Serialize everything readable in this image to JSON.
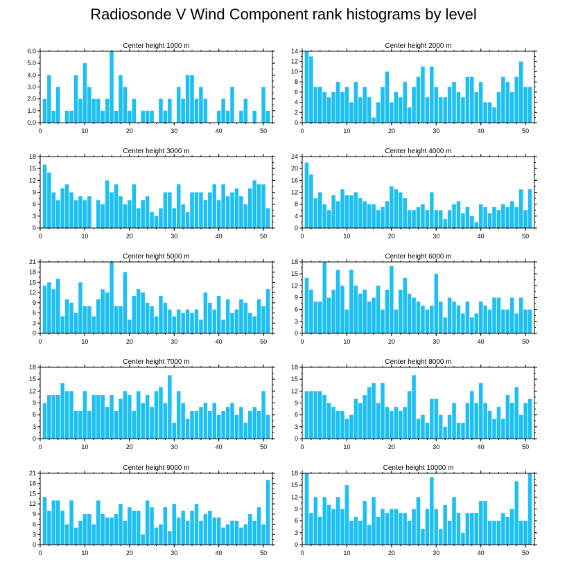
{
  "figure": {
    "title": "Radiosonde V Wind Component rank histograms by level"
  },
  "style": {
    "bar_color": "#1ec0f4",
    "axis_color": "#000000"
  },
  "chart_data": [
    {
      "type": "bar",
      "title": "Center height 1000 m",
      "x": [
        1,
        2,
        3,
        4,
        5,
        6,
        7,
        8,
        9,
        10,
        11,
        12,
        13,
        14,
        15,
        16,
        17,
        18,
        19,
        20,
        21,
        22,
        23,
        24,
        25,
        26,
        27,
        28,
        29,
        30,
        31,
        32,
        33,
        34,
        35,
        36,
        37,
        38,
        39,
        40,
        41,
        42,
        43,
        44,
        45,
        46,
        47,
        48,
        49,
        50,
        51
      ],
      "values": [
        2,
        4,
        1,
        3,
        0,
        1,
        1,
        4,
        2,
        5,
        3,
        2,
        2,
        1,
        2,
        6,
        1,
        4,
        3,
        1,
        2,
        0,
        1,
        1,
        1,
        0,
        2,
        1,
        2,
        0,
        3,
        2,
        4,
        4,
        2,
        3,
        2,
        0,
        0,
        1,
        2,
        1,
        3,
        0,
        1,
        2,
        0,
        1,
        0,
        3,
        1
      ],
      "xlim": [
        0,
        52
      ],
      "ylim": [
        0,
        6
      ],
      "yticks": [
        "0.0",
        "1.0",
        "2.0",
        "3.0",
        "4.0",
        "5.0",
        "6.0"
      ],
      "xticks": [
        "0",
        "10",
        "20",
        "30",
        "40",
        "50"
      ]
    },
    {
      "type": "bar",
      "title": "Center height 2000 m",
      "x": [
        1,
        2,
        3,
        4,
        5,
        6,
        7,
        8,
        9,
        10,
        11,
        12,
        13,
        14,
        15,
        16,
        17,
        18,
        19,
        20,
        21,
        22,
        23,
        24,
        25,
        26,
        27,
        28,
        29,
        30,
        31,
        32,
        33,
        34,
        35,
        36,
        37,
        38,
        39,
        40,
        41,
        42,
        43,
        44,
        45,
        46,
        47,
        48,
        49,
        50,
        51
      ],
      "values": [
        14,
        13,
        7,
        7,
        6,
        5,
        6,
        8,
        6,
        7,
        4,
        8,
        5,
        7,
        5,
        1,
        4,
        7,
        10,
        4,
        6,
        5,
        8,
        3,
        7,
        9,
        11,
        5,
        11,
        7,
        5,
        5,
        7,
        8,
        6,
        5,
        9,
        9,
        6,
        8,
        4,
        4,
        3,
        6,
        9,
        8,
        6,
        9,
        12,
        7,
        7
      ],
      "xlim": [
        0,
        52
      ],
      "ylim": [
        0,
        14
      ],
      "yticks": [
        "0",
        "2",
        "4",
        "6",
        "8",
        "10",
        "12",
        "14"
      ],
      "xticks": [
        "0",
        "10",
        "20",
        "30",
        "40",
        "50"
      ]
    },
    {
      "type": "bar",
      "title": "Center height 3000 m",
      "x": [
        1,
        2,
        3,
        4,
        5,
        6,
        7,
        8,
        9,
        10,
        11,
        12,
        13,
        14,
        15,
        16,
        17,
        18,
        19,
        20,
        21,
        22,
        23,
        24,
        25,
        26,
        27,
        28,
        29,
        30,
        31,
        32,
        33,
        34,
        35,
        36,
        37,
        38,
        39,
        40,
        41,
        42,
        43,
        44,
        45,
        46,
        47,
        48,
        49,
        50,
        51
      ],
      "values": [
        16,
        14,
        9,
        7,
        10,
        11,
        9,
        7,
        8,
        7,
        8,
        0,
        7,
        6,
        12,
        9,
        11,
        8,
        6,
        7,
        11,
        5,
        7,
        8,
        4,
        3,
        5,
        9,
        9,
        5,
        11,
        6,
        4,
        9,
        9,
        9,
        7,
        9,
        11,
        7,
        11,
        8,
        9,
        10,
        8,
        6,
        10,
        12,
        11,
        11,
        5
      ],
      "xlim": [
        0,
        52
      ],
      "ylim": [
        0,
        18
      ],
      "yticks": [
        "0",
        "3",
        "6",
        "9",
        "12",
        "15",
        "18"
      ],
      "xticks": [
        "0",
        "10",
        "20",
        "30",
        "40",
        "50"
      ]
    },
    {
      "type": "bar",
      "title": "Center height 4000 m",
      "x": [
        1,
        2,
        3,
        4,
        5,
        6,
        7,
        8,
        9,
        10,
        11,
        12,
        13,
        14,
        15,
        16,
        17,
        18,
        19,
        20,
        21,
        22,
        23,
        24,
        25,
        26,
        27,
        28,
        29,
        30,
        31,
        32,
        33,
        34,
        35,
        36,
        37,
        38,
        39,
        40,
        41,
        42,
        43,
        44,
        45,
        46,
        47,
        48,
        49,
        50,
        51
      ],
      "values": [
        22,
        18,
        10,
        12,
        8,
        6,
        11,
        9,
        13,
        11,
        11,
        12,
        10,
        9,
        8,
        8,
        6,
        7,
        9,
        14,
        13,
        12,
        10,
        6,
        6,
        7,
        8,
        6,
        12,
        6,
        6,
        3,
        6,
        8,
        9,
        5,
        7,
        4,
        2,
        8,
        7,
        5,
        7,
        6,
        8,
        7,
        9,
        7,
        13,
        6,
        13
      ],
      "xlim": [
        0,
        52
      ],
      "ylim": [
        0,
        24
      ],
      "yticks": [
        "0",
        "4",
        "8",
        "12",
        "16",
        "20",
        "24"
      ],
      "xticks": [
        "0",
        "10",
        "20",
        "30",
        "40",
        "50"
      ]
    },
    {
      "type": "bar",
      "title": "Center height 5000 m",
      "x": [
        1,
        2,
        3,
        4,
        5,
        6,
        7,
        8,
        9,
        10,
        11,
        12,
        13,
        14,
        15,
        16,
        17,
        18,
        19,
        20,
        21,
        22,
        23,
        24,
        25,
        26,
        27,
        28,
        29,
        30,
        31,
        32,
        33,
        34,
        35,
        36,
        37,
        38,
        39,
        40,
        41,
        42,
        43,
        44,
        45,
        46,
        47,
        48,
        49,
        50,
        51
      ],
      "values": [
        14,
        15,
        13,
        16,
        5,
        10,
        9,
        6,
        15,
        8,
        8,
        5,
        10,
        13,
        12,
        21,
        8,
        8,
        18,
        4,
        11,
        13,
        12,
        9,
        8,
        5,
        11,
        9,
        7,
        5,
        7,
        6,
        7,
        6,
        7,
        4,
        12,
        9,
        7,
        11,
        4,
        10,
        6,
        7,
        10,
        9,
        6,
        5,
        10,
        8,
        13
      ],
      "xlim": [
        0,
        52
      ],
      "ylim": [
        0,
        21
      ],
      "yticks": [
        "0",
        "3",
        "6",
        "9",
        "12",
        "15",
        "18",
        "21"
      ],
      "xticks": [
        "0",
        "10",
        "20",
        "30",
        "40",
        "50"
      ]
    },
    {
      "type": "bar",
      "title": "Center height 6000 m",
      "x": [
        1,
        2,
        3,
        4,
        5,
        6,
        7,
        8,
        9,
        10,
        11,
        12,
        13,
        14,
        15,
        16,
        17,
        18,
        19,
        20,
        21,
        22,
        23,
        24,
        25,
        26,
        27,
        28,
        29,
        30,
        31,
        32,
        33,
        34,
        35,
        36,
        37,
        38,
        39,
        40,
        41,
        42,
        43,
        44,
        45,
        46,
        47,
        48,
        49,
        50,
        51
      ],
      "values": [
        14,
        11,
        8,
        8,
        18,
        9,
        11,
        16,
        12,
        6,
        16,
        12,
        10,
        11,
        8,
        9,
        12,
        6,
        11,
        17,
        6,
        11,
        14,
        10,
        9,
        8,
        7,
        6,
        7,
        15,
        8,
        4,
        9,
        8,
        7,
        5,
        8,
        4,
        5,
        8,
        7,
        6,
        9,
        9,
        6,
        6,
        9,
        5,
        9,
        6,
        6
      ],
      "xlim": [
        0,
        52
      ],
      "ylim": [
        0,
        18
      ],
      "yticks": [
        "0",
        "3",
        "6",
        "9",
        "12",
        "15",
        "18"
      ],
      "xticks": [
        "0",
        "10",
        "20",
        "30",
        "40",
        "50"
      ]
    },
    {
      "type": "bar",
      "title": "Center height 7000 m",
      "x": [
        1,
        2,
        3,
        4,
        5,
        6,
        7,
        8,
        9,
        10,
        11,
        12,
        13,
        14,
        15,
        16,
        17,
        18,
        19,
        20,
        21,
        22,
        23,
        24,
        25,
        26,
        27,
        28,
        29,
        30,
        31,
        32,
        33,
        34,
        35,
        36,
        37,
        38,
        39,
        40,
        41,
        42,
        43,
        44,
        45,
        46,
        47,
        48,
        49,
        50,
        51
      ],
      "values": [
        9,
        11,
        11,
        11,
        14,
        12,
        12,
        7,
        7,
        12,
        7,
        11,
        11,
        11,
        8,
        11,
        7,
        10,
        12,
        11,
        7,
        12,
        9,
        11,
        8,
        12,
        13,
        9,
        16,
        4,
        12,
        9,
        5,
        7,
        7,
        8,
        9,
        7,
        9,
        6,
        7,
        8,
        9,
        6,
        8,
        4,
        7,
        8,
        7,
        12,
        6
      ],
      "xlim": [
        0,
        52
      ],
      "ylim": [
        0,
        18
      ],
      "yticks": [
        "0",
        "3",
        "6",
        "9",
        "12",
        "15",
        "18"
      ],
      "xticks": [
        "0",
        "10",
        "20",
        "30",
        "40",
        "50"
      ]
    },
    {
      "type": "bar",
      "title": "Center height 8000 m",
      "x": [
        1,
        2,
        3,
        4,
        5,
        6,
        7,
        8,
        9,
        10,
        11,
        12,
        13,
        14,
        15,
        16,
        17,
        18,
        19,
        20,
        21,
        22,
        23,
        24,
        25,
        26,
        27,
        28,
        29,
        30,
        31,
        32,
        33,
        34,
        35,
        36,
        37,
        38,
        39,
        40,
        41,
        42,
        43,
        44,
        45,
        46,
        47,
        48,
        49,
        50,
        51
      ],
      "values": [
        12,
        12,
        12,
        12,
        11,
        9,
        8,
        7,
        7,
        5,
        6,
        10,
        9,
        11,
        13,
        14,
        9,
        14,
        8,
        7,
        8,
        7,
        8,
        12,
        16,
        5,
        6,
        4,
        10,
        10,
        6,
        3,
        6,
        9,
        4,
        4,
        9,
        12,
        9,
        14,
        9,
        7,
        5,
        8,
        5,
        11,
        9,
        13,
        6,
        9,
        10
      ],
      "xlim": [
        0,
        52
      ],
      "ylim": [
        0,
        18
      ],
      "yticks": [
        "0",
        "3",
        "6",
        "9",
        "12",
        "15",
        "18"
      ],
      "xticks": [
        "0",
        "10",
        "20",
        "30",
        "40",
        "50"
      ]
    },
    {
      "type": "bar",
      "title": "Center height 9000 m",
      "x": [
        1,
        2,
        3,
        4,
        5,
        6,
        7,
        8,
        9,
        10,
        11,
        12,
        13,
        14,
        15,
        16,
        17,
        18,
        19,
        20,
        21,
        22,
        23,
        24,
        25,
        26,
        27,
        28,
        29,
        30,
        31,
        32,
        33,
        34,
        35,
        36,
        37,
        38,
        39,
        40,
        41,
        42,
        43,
        44,
        45,
        46,
        47,
        48,
        49,
        50,
        51
      ],
      "values": [
        14,
        10,
        13,
        13,
        10,
        6,
        13,
        5,
        7,
        9,
        9,
        6,
        13,
        9,
        8,
        8,
        9,
        12,
        7,
        11,
        10,
        10,
        3,
        13,
        11,
        5,
        6,
        11,
        4,
        12,
        8,
        10,
        7,
        10,
        12,
        7,
        9,
        10,
        8,
        8,
        5,
        6,
        7,
        7,
        5,
        6,
        9,
        7,
        11,
        6,
        19
      ],
      "xlim": [
        0,
        52
      ],
      "ylim": [
        0,
        21
      ],
      "yticks": [
        "0",
        "3",
        "6",
        "9",
        "12",
        "15",
        "18",
        "21"
      ],
      "xticks": [
        "0",
        "10",
        "20",
        "30",
        "40",
        "50"
      ]
    },
    {
      "type": "bar",
      "title": "Center height 10000 m",
      "x": [
        1,
        2,
        3,
        4,
        5,
        6,
        7,
        8,
        9,
        10,
        11,
        12,
        13,
        14,
        15,
        16,
        17,
        18,
        19,
        20,
        21,
        22,
        23,
        24,
        25,
        26,
        27,
        28,
        29,
        30,
        31,
        32,
        33,
        34,
        35,
        36,
        37,
        38,
        39,
        40,
        41,
        42,
        43,
        44,
        45,
        46,
        47,
        48,
        49,
        50,
        51
      ],
      "values": [
        18,
        8,
        12,
        7,
        12,
        10,
        9,
        12,
        9,
        15,
        6,
        7,
        6,
        11,
        5,
        12,
        7,
        9,
        8,
        9,
        9,
        8,
        8,
        6,
        9,
        12,
        4,
        9,
        17,
        9,
        4,
        10,
        6,
        12,
        8,
        3,
        8,
        8,
        8,
        11,
        11,
        6,
        6,
        6,
        8,
        7,
        9,
        16,
        6,
        6,
        18
      ],
      "xlim": [
        0,
        52
      ],
      "ylim": [
        0,
        18
      ],
      "yticks": [
        "0",
        "3",
        "6",
        "9",
        "12",
        "15",
        "18"
      ],
      "xticks": [
        "0",
        "10",
        "20",
        "30",
        "40",
        "50"
      ]
    }
  ]
}
